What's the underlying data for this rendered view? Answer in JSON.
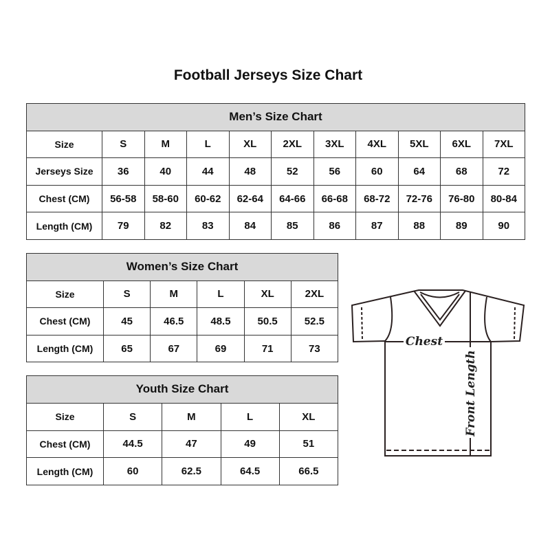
{
  "title": "Football Jerseys Size Chart",
  "men": {
    "caption": "Men’s Size Chart",
    "rows": [
      {
        "label": "Size",
        "values": [
          "S",
          "M",
          "L",
          "XL",
          "2XL",
          "3XL",
          "4XL",
          "5XL",
          "6XL",
          "7XL"
        ]
      },
      {
        "label": "Jerseys Size",
        "values": [
          "36",
          "40",
          "44",
          "48",
          "52",
          "56",
          "60",
          "64",
          "68",
          "72"
        ]
      },
      {
        "label": "Chest (CM)",
        "values": [
          "56-58",
          "58-60",
          "60-62",
          "62-64",
          "64-66",
          "66-68",
          "68-72",
          "72-76",
          "76-80",
          "80-84"
        ]
      },
      {
        "label": "Length (CM)",
        "values": [
          "79",
          "82",
          "83",
          "84",
          "85",
          "86",
          "87",
          "88",
          "89",
          "90"
        ]
      }
    ]
  },
  "women": {
    "caption": "Women’s Size Chart",
    "rows": [
      {
        "label": "Size",
        "values": [
          "S",
          "M",
          "L",
          "XL",
          "2XL"
        ]
      },
      {
        "label": "Chest (CM)",
        "values": [
          "45",
          "46.5",
          "48.5",
          "50.5",
          "52.5"
        ]
      },
      {
        "label": "Length (CM)",
        "values": [
          "65",
          "67",
          "69",
          "71",
          "73"
        ]
      }
    ]
  },
  "youth": {
    "caption": "Youth Size Chart",
    "rows": [
      {
        "label": "Size",
        "values": [
          "S",
          "M",
          "L",
          "XL"
        ]
      },
      {
        "label": "Chest (CM)",
        "values": [
          "44.5",
          "47",
          "49",
          "51"
        ]
      },
      {
        "label": "Length (CM)",
        "values": [
          "60",
          "62.5",
          "64.5",
          "66.5"
        ]
      }
    ]
  },
  "diagram": {
    "chest_label": "Chest",
    "length_label": "Front Length"
  },
  "colors": {
    "header_bg": "#d9d9d9",
    "border": "#333333"
  }
}
